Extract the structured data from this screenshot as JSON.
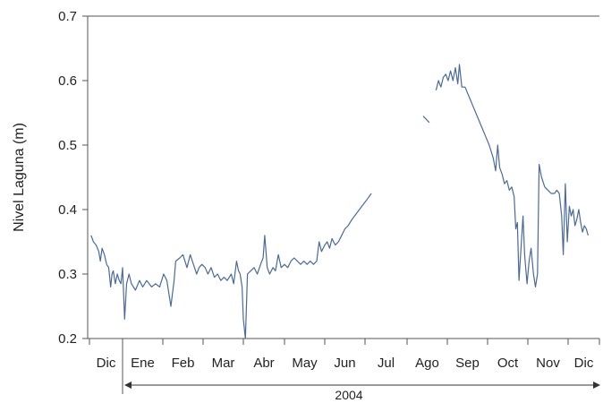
{
  "chart_data": {
    "type": "line",
    "ylabel": "Nivel Laguna (m)",
    "ylim": [
      0.2,
      0.7
    ],
    "yticks": [
      "0.2",
      "0.3",
      "0.4",
      "0.5",
      "0.6",
      "0.7"
    ],
    "months": [
      "Dic",
      "Ene",
      "Feb",
      "Mar",
      "Abr",
      "May",
      "Jun",
      "Jul",
      "Ago",
      "Sep",
      "Oct",
      "Nov",
      "Dic"
    ],
    "xlim": [
      0,
      13
    ],
    "year_label": "2004",
    "line_color": "#4a6a9c",
    "grid": false,
    "series": [
      {
        "segments": [
          [
            [
              0.05,
              0.36
            ],
            [
              0.12,
              0.35
            ],
            [
              0.2,
              0.345
            ],
            [
              0.28,
              0.335
            ],
            [
              0.33,
              0.32
            ],
            [
              0.38,
              0.34
            ],
            [
              0.45,
              0.33
            ],
            [
              0.52,
              0.315
            ],
            [
              0.58,
              0.31
            ],
            [
              0.64,
              0.28
            ],
            [
              0.68,
              0.3
            ],
            [
              0.72,
              0.305
            ],
            [
              0.78,
              0.285
            ],
            [
              0.84,
              0.3
            ],
            [
              0.9,
              0.29
            ],
            [
              0.95,
              0.285
            ],
            [
              1.0,
              0.31
            ],
            [
              1.05,
              0.23
            ],
            [
              1.1,
              0.285
            ],
            [
              1.16,
              0.3
            ],
            [
              1.22,
              0.285
            ],
            [
              1.32,
              0.275
            ],
            [
              1.42,
              0.29
            ],
            [
              1.5,
              0.28
            ],
            [
              1.6,
              0.29
            ],
            [
              1.72,
              0.28
            ],
            [
              1.82,
              0.285
            ],
            [
              1.92,
              0.28
            ],
            [
              2.02,
              0.3
            ],
            [
              2.1,
              0.29
            ],
            [
              2.2,
              0.25
            ],
            [
              2.28,
              0.29
            ],
            [
              2.32,
              0.32
            ],
            [
              2.42,
              0.325
            ],
            [
              2.5,
              0.33
            ],
            [
              2.6,
              0.31
            ],
            [
              2.68,
              0.33
            ],
            [
              2.76,
              0.315
            ],
            [
              2.84,
              0.3
            ],
            [
              2.9,
              0.31
            ],
            [
              2.97,
              0.315
            ],
            [
              3.05,
              0.31
            ],
            [
              3.12,
              0.3
            ],
            [
              3.2,
              0.31
            ],
            [
              3.28,
              0.295
            ],
            [
              3.36,
              0.3
            ],
            [
              3.44,
              0.29
            ],
            [
              3.52,
              0.295
            ],
            [
              3.6,
              0.29
            ],
            [
              3.7,
              0.3
            ],
            [
              3.76,
              0.285
            ],
            [
              3.83,
              0.32
            ],
            [
              3.88,
              0.305
            ],
            [
              3.92,
              0.3
            ],
            [
              3.97,
              0.28
            ],
            [
              4.0,
              0.23
            ],
            [
              4.05,
              0.2
            ],
            [
              4.1,
              0.3
            ],
            [
              4.18,
              0.305
            ],
            [
              4.26,
              0.31
            ],
            [
              4.34,
              0.3
            ],
            [
              4.42,
              0.315
            ],
            [
              4.48,
              0.325
            ],
            [
              4.52,
              0.36
            ],
            [
              4.58,
              0.31
            ],
            [
              4.64,
              0.3
            ],
            [
              4.72,
              0.31
            ],
            [
              4.78,
              0.305
            ],
            [
              4.85,
              0.33
            ],
            [
              4.92,
              0.31
            ],
            [
              5.0,
              0.315
            ],
            [
              5.08,
              0.31
            ],
            [
              5.16,
              0.32
            ],
            [
              5.24,
              0.325
            ],
            [
              5.32,
              0.32
            ],
            [
              5.4,
              0.315
            ],
            [
              5.48,
              0.32
            ],
            [
              5.56,
              0.315
            ],
            [
              5.64,
              0.32
            ],
            [
              5.72,
              0.315
            ],
            [
              5.8,
              0.32
            ],
            [
              5.86,
              0.35
            ],
            [
              5.92,
              0.335
            ],
            [
              6.0,
              0.345
            ],
            [
              6.06,
              0.35
            ],
            [
              6.12,
              0.34
            ],
            [
              6.18,
              0.355
            ],
            [
              6.26,
              0.345
            ],
            [
              6.34,
              0.35
            ],
            [
              6.42,
              0.36
            ],
            [
              6.5,
              0.37
            ],
            [
              6.58,
              0.375
            ],
            [
              6.68,
              0.385
            ],
            [
              6.8,
              0.395
            ],
            [
              6.92,
              0.405
            ],
            [
              7.04,
              0.415
            ],
            [
              7.15,
              0.425
            ]
          ],
          [
            [
              8.4,
              0.545
            ],
            [
              8.55,
              0.535
            ]
          ],
          [
            [
              8.72,
              0.585
            ],
            [
              8.78,
              0.6
            ],
            [
              8.84,
              0.59
            ],
            [
              8.9,
              0.605
            ],
            [
              8.96,
              0.61
            ],
            [
              9.02,
              0.6
            ],
            [
              9.08,
              0.615
            ],
            [
              9.14,
              0.6
            ],
            [
              9.2,
              0.62
            ],
            [
              9.26,
              0.595
            ],
            [
              9.3,
              0.625
            ],
            [
              9.36,
              0.59
            ],
            [
              9.44,
              0.59
            ],
            [
              9.54,
              0.575
            ],
            [
              9.64,
              0.56
            ],
            [
              9.74,
              0.545
            ],
            [
              9.84,
              0.53
            ],
            [
              9.94,
              0.515
            ],
            [
              10.04,
              0.5
            ],
            [
              10.14,
              0.48
            ],
            [
              10.2,
              0.46
            ],
            [
              10.25,
              0.5
            ],
            [
              10.3,
              0.465
            ],
            [
              10.36,
              0.455
            ],
            [
              10.42,
              0.44
            ],
            [
              10.48,
              0.445
            ],
            [
              10.54,
              0.43
            ],
            [
              10.6,
              0.435
            ],
            [
              10.66,
              0.42
            ],
            [
              10.7,
              0.37
            ],
            [
              10.74,
              0.38
            ],
            [
              10.78,
              0.29
            ],
            [
              10.84,
              0.35
            ],
            [
              10.88,
              0.39
            ],
            [
              10.92,
              0.33
            ],
            [
              10.98,
              0.285
            ],
            [
              11.03,
              0.32
            ],
            [
              11.08,
              0.34
            ],
            [
              11.14,
              0.3
            ],
            [
              11.19,
              0.28
            ],
            [
              11.24,
              0.3
            ],
            [
              11.28,
              0.47
            ],
            [
              11.34,
              0.45
            ],
            [
              11.42,
              0.435
            ],
            [
              11.5,
              0.43
            ],
            [
              11.58,
              0.425
            ],
            [
              11.66,
              0.425
            ],
            [
              11.72,
              0.43
            ],
            [
              11.78,
              0.425
            ],
            [
              11.84,
              0.39
            ],
            [
              11.88,
              0.33
            ],
            [
              11.93,
              0.44
            ],
            [
              11.98,
              0.35
            ],
            [
              12.04,
              0.405
            ],
            [
              12.1,
              0.39
            ],
            [
              12.16,
              0.4
            ],
            [
              12.22,
              0.375
            ],
            [
              12.28,
              0.385
            ],
            [
              12.34,
              0.4
            ],
            [
              12.4,
              0.38
            ],
            [
              12.46,
              0.365
            ],
            [
              12.52,
              0.375
            ],
            [
              12.58,
              0.37
            ],
            [
              12.64,
              0.36
            ]
          ]
        ]
      }
    ]
  }
}
